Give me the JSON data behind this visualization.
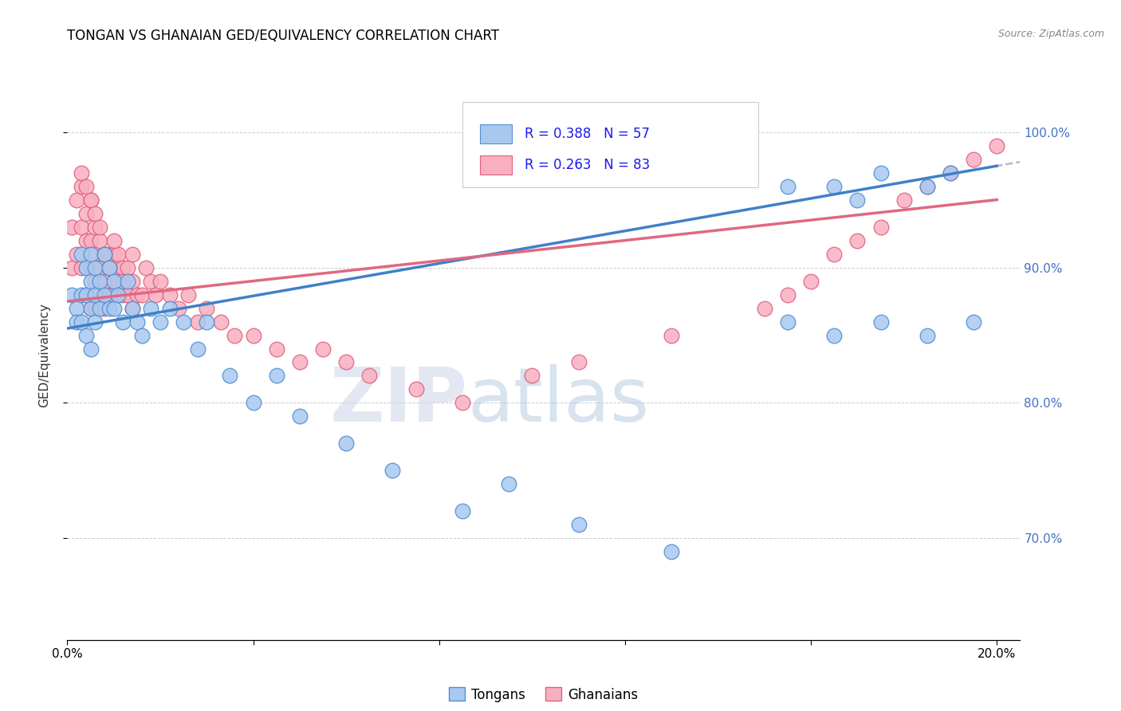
{
  "title": "TONGAN VS GHANAIAN GED/EQUIVALENCY CORRELATION CHART",
  "source": "Source: ZipAtlas.com",
  "ylabel": "GED/Equivalency",
  "y_ticks": [
    0.7,
    0.8,
    0.9,
    1.0
  ],
  "y_ticklabels": [
    "70.0%",
    "80.0%",
    "90.0%",
    "100.0%"
  ],
  "xlim": [
    0.0,
    0.205
  ],
  "ylim": [
    0.625,
    1.045
  ],
  "tongan_R": 0.388,
  "tongan_N": 57,
  "ghanaian_R": 0.263,
  "ghanaian_N": 83,
  "tongan_color": "#a8c8f0",
  "ghanaian_color": "#f8b0c0",
  "tongan_edge_color": "#5090d0",
  "ghanaian_edge_color": "#e06080",
  "tongan_line_color": "#4080c8",
  "ghanaian_line_color": "#e06880",
  "watermark_zip": "ZIP",
  "watermark_atlas": "atlas",
  "tongan_x": [
    0.001,
    0.002,
    0.002,
    0.003,
    0.003,
    0.003,
    0.004,
    0.004,
    0.004,
    0.005,
    0.005,
    0.005,
    0.005,
    0.006,
    0.006,
    0.006,
    0.007,
    0.007,
    0.008,
    0.008,
    0.009,
    0.009,
    0.01,
    0.01,
    0.011,
    0.012,
    0.013,
    0.014,
    0.015,
    0.016,
    0.018,
    0.02,
    0.022,
    0.025,
    0.028,
    0.03,
    0.035,
    0.04,
    0.045,
    0.05,
    0.06,
    0.07,
    0.085,
    0.095,
    0.11,
    0.13,
    0.155,
    0.165,
    0.175,
    0.185,
    0.195,
    0.155,
    0.165,
    0.17,
    0.175,
    0.185,
    0.19
  ],
  "tongan_y": [
    0.88,
    0.87,
    0.86,
    0.91,
    0.88,
    0.86,
    0.9,
    0.88,
    0.85,
    0.91,
    0.89,
    0.87,
    0.84,
    0.9,
    0.88,
    0.86,
    0.89,
    0.87,
    0.91,
    0.88,
    0.9,
    0.87,
    0.89,
    0.87,
    0.88,
    0.86,
    0.89,
    0.87,
    0.86,
    0.85,
    0.87,
    0.86,
    0.87,
    0.86,
    0.84,
    0.86,
    0.82,
    0.8,
    0.82,
    0.79,
    0.77,
    0.75,
    0.72,
    0.74,
    0.71,
    0.69,
    0.86,
    0.85,
    0.86,
    0.85,
    0.86,
    0.96,
    0.96,
    0.95,
    0.97,
    0.96,
    0.97
  ],
  "ghanaian_x": [
    0.001,
    0.001,
    0.002,
    0.002,
    0.003,
    0.003,
    0.003,
    0.004,
    0.004,
    0.004,
    0.005,
    0.005,
    0.005,
    0.005,
    0.006,
    0.006,
    0.006,
    0.006,
    0.007,
    0.007,
    0.007,
    0.008,
    0.008,
    0.008,
    0.009,
    0.009,
    0.009,
    0.01,
    0.01,
    0.01,
    0.011,
    0.011,
    0.012,
    0.012,
    0.013,
    0.013,
    0.014,
    0.014,
    0.015,
    0.016,
    0.017,
    0.018,
    0.019,
    0.02,
    0.022,
    0.024,
    0.026,
    0.028,
    0.03,
    0.033,
    0.036,
    0.04,
    0.045,
    0.05,
    0.055,
    0.06,
    0.065,
    0.075,
    0.085,
    0.1,
    0.11,
    0.13,
    0.15,
    0.155,
    0.16,
    0.165,
    0.17,
    0.175,
    0.18,
    0.185,
    0.19,
    0.195,
    0.2,
    0.003,
    0.004,
    0.005,
    0.006,
    0.007,
    0.008,
    0.009,
    0.01,
    0.012,
    0.014
  ],
  "ghanaian_y": [
    0.93,
    0.9,
    0.95,
    0.91,
    0.96,
    0.93,
    0.9,
    0.94,
    0.92,
    0.88,
    0.95,
    0.92,
    0.9,
    0.87,
    0.93,
    0.91,
    0.89,
    0.87,
    0.92,
    0.9,
    0.88,
    0.91,
    0.89,
    0.87,
    0.91,
    0.9,
    0.88,
    0.91,
    0.9,
    0.88,
    0.91,
    0.89,
    0.9,
    0.88,
    0.9,
    0.88,
    0.91,
    0.89,
    0.88,
    0.88,
    0.9,
    0.89,
    0.88,
    0.89,
    0.88,
    0.87,
    0.88,
    0.86,
    0.87,
    0.86,
    0.85,
    0.85,
    0.84,
    0.83,
    0.84,
    0.83,
    0.82,
    0.81,
    0.8,
    0.82,
    0.83,
    0.85,
    0.87,
    0.88,
    0.89,
    0.91,
    0.92,
    0.93,
    0.95,
    0.96,
    0.97,
    0.98,
    0.99,
    0.97,
    0.96,
    0.95,
    0.94,
    0.93,
    0.91,
    0.9,
    0.92,
    0.89,
    0.87
  ]
}
